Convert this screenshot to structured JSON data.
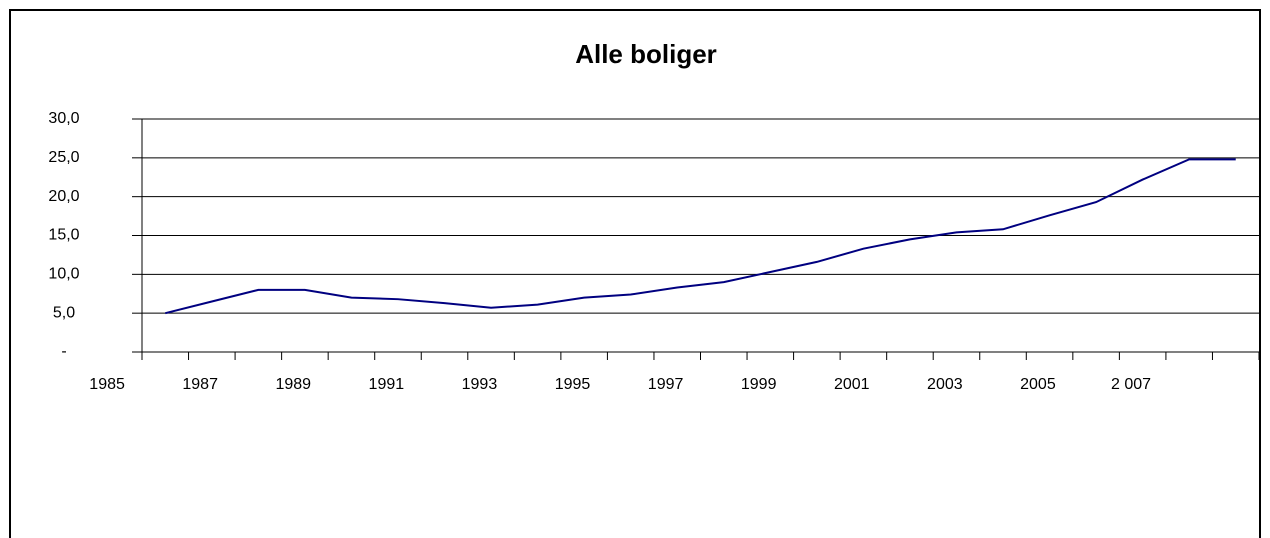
{
  "chart_data": {
    "type": "line",
    "title": "Alle boliger",
    "categories": [
      "1985",
      null,
      "1987",
      null,
      "1989",
      null,
      "1991",
      null,
      "1993",
      null,
      "1995",
      null,
      "1997",
      null,
      "1999",
      null,
      "2001",
      null,
      "2003",
      null,
      "2005",
      null,
      "2 007",
      null
    ],
    "values": [
      5.0,
      6.5,
      8.0,
      8.0,
      7.0,
      6.8,
      6.3,
      5.7,
      6.1,
      7.0,
      7.4,
      8.3,
      9.0,
      10.3,
      11.6,
      13.3,
      14.5,
      15.4,
      15.8,
      17.6,
      19.3,
      22.2,
      24.8,
      24.8
    ],
    "color": "#000080",
    "ylim": [
      0,
      30
    ],
    "yticks": [
      {
        "value": 0,
        "label": "-"
      },
      {
        "value": 5,
        "label": "5,0"
      },
      {
        "value": 10,
        "label": "10,0"
      },
      {
        "value": 15,
        "label": "15,0"
      },
      {
        "value": 20,
        "label": "20,0"
      },
      {
        "value": 25,
        "label": "25,0"
      },
      {
        "value": 30,
        "label": "30,0"
      }
    ],
    "grid": true
  }
}
